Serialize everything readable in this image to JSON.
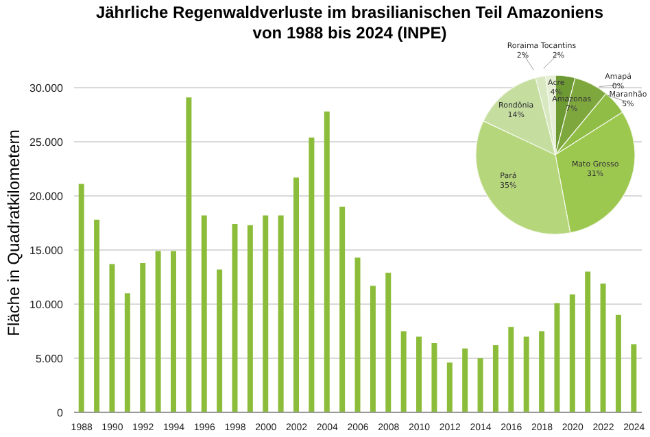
{
  "chart_data": [
    {
      "type": "bar",
      "title": "Jährliche Regenwaldverluste im brasilianischen Teil Amazoniens von 1988 bis 2024 (INPE)",
      "ylabel": "Fläche in Quadratkilometern",
      "categories": [
        "1988",
        null,
        "1990",
        null,
        "1992",
        null,
        "1994",
        null,
        "1996",
        null,
        "1998",
        null,
        "2000",
        null,
        "2002",
        null,
        "2004",
        null,
        "2006",
        null,
        "2008",
        null,
        "2010",
        null,
        "2012",
        null,
        "2014",
        null,
        "2016",
        null,
        "2018",
        null,
        "2020",
        null,
        "2022",
        null,
        "2024"
      ],
      "values": [
        21100,
        17800,
        13700,
        11000,
        13800,
        14900,
        14900,
        29100,
        18200,
        13200,
        17400,
        17300,
        18200,
        18200,
        21700,
        25400,
        27800,
        19000,
        14300,
        11700,
        12900,
        7500,
        7000,
        6400,
        4600,
        5900,
        5000,
        6200,
        7900,
        7000,
        7500,
        10100,
        10900,
        13000,
        11900,
        9000,
        6300
      ],
      "color": "#8cbd3a",
      "ylim": [
        0,
        30000
      ],
      "yticks": [
        {
          "value": 0,
          "label": "0"
        },
        {
          "value": 5000,
          "label": "5.000"
        },
        {
          "value": 10000,
          "label": "10.000"
        },
        {
          "value": 15000,
          "label": "15.000"
        },
        {
          "value": 20000,
          "label": "20.000"
        },
        {
          "value": 25000,
          "label": "25.000"
        },
        {
          "value": 30000,
          "label": "30.000"
        }
      ],
      "grid": "y"
    },
    {
      "type": "pie",
      "categories": [
        "Acre",
        "Amazonas",
        "Amapá",
        "Maranhão",
        "Mato Grosso",
        "Pará",
        "Rondônia",
        "Roraima",
        "Tocantins"
      ],
      "values": [
        4,
        7,
        0,
        5,
        31,
        35,
        14,
        2,
        2
      ],
      "colors": [
        "#6e9a34",
        "#7ea83d",
        "#c7dba0",
        "#8fbd45",
        "#9dc84f",
        "#b5d67a",
        "#c5dea0",
        "#d8e8c0",
        "#e6efd6"
      ],
      "value_labels": [
        "4%",
        "7%",
        "0%",
        "5%",
        "31%",
        "35%",
        "14%",
        "2%",
        "2%"
      ]
    }
  ]
}
